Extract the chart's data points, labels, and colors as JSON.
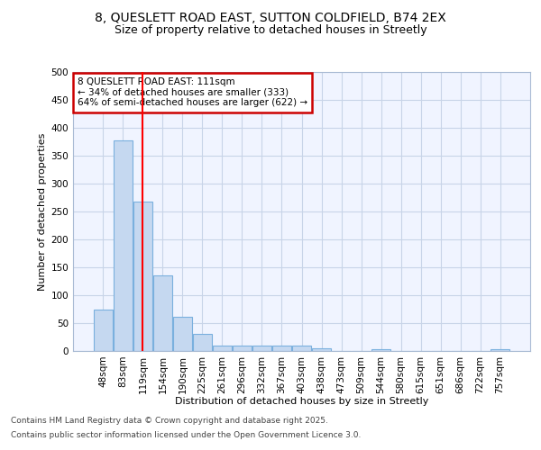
{
  "title_line1": "8, QUESLETT ROAD EAST, SUTTON COLDFIELD, B74 2EX",
  "title_line2": "Size of property relative to detached houses in Streetly",
  "xlabel": "Distribution of detached houses by size in Streetly",
  "ylabel": "Number of detached properties",
  "bins": [
    "48sqm",
    "83sqm",
    "119sqm",
    "154sqm",
    "190sqm",
    "225sqm",
    "261sqm",
    "296sqm",
    "332sqm",
    "367sqm",
    "403sqm",
    "438sqm",
    "473sqm",
    "509sqm",
    "544sqm",
    "580sqm",
    "615sqm",
    "651sqm",
    "686sqm",
    "722sqm",
    "757sqm"
  ],
  "values": [
    75,
    378,
    267,
    136,
    62,
    30,
    10,
    10,
    10,
    10,
    10,
    5,
    0,
    0,
    3,
    0,
    0,
    0,
    0,
    0,
    4
  ],
  "bar_color": "#c5d8f0",
  "bar_edge_color": "#7ab0de",
  "red_line_x": 2.0,
  "annotation_text_line1": "8 QUESLETT ROAD EAST: 111sqm",
  "annotation_text_line2": "← 34% of detached houses are smaller (333)",
  "annotation_text_line3": "64% of semi-detached houses are larger (622) →",
  "annotation_box_color": "#ffffff",
  "annotation_box_edge": "#cc0000",
  "footer_line1": "Contains HM Land Registry data © Crown copyright and database right 2025.",
  "footer_line2": "Contains public sector information licensed under the Open Government Licence 3.0.",
  "bg_color": "#ffffff",
  "plot_bg_color": "#f0f4ff",
  "grid_color": "#c8d4e8",
  "ylim": [
    0,
    500
  ],
  "yticks": [
    0,
    50,
    100,
    150,
    200,
    250,
    300,
    350,
    400,
    450,
    500
  ],
  "title1_fontsize": 10,
  "title2_fontsize": 9,
  "axis_label_fontsize": 8,
  "tick_fontsize": 7.5,
  "annotation_fontsize": 7.5,
  "footer_fontsize": 6.5
}
